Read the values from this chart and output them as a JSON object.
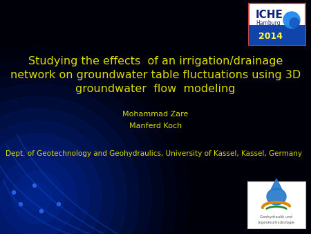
{
  "background_color": "#000008",
  "title_line1": "Studying the effects  of an irrigation/drainage",
  "title_line2": "network on groundwater table fluctuations using 3D",
  "title_line3": "groundwater  flow  modeling",
  "title_color": "#DDDD00",
  "title_fontsize": 11.5,
  "author_line1": "Mohammad Zare",
  "author_line2": "Manferd Koch",
  "author_color": "#DDDD00",
  "author_fontsize": 8.0,
  "dept_text": "Dept. of Geotechnology and Geohydraulics, University of Kassel, Kassel, Germany",
  "dept_color": "#DDDD00",
  "dept_fontsize": 7.5,
  "iche_year_color": "#FFFF00",
  "swirl_color": "#0022BB"
}
